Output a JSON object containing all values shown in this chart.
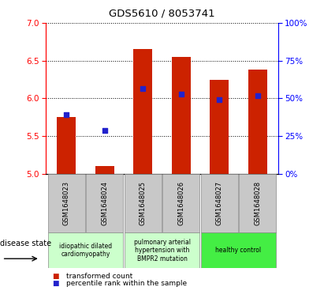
{
  "title": "GDS5610 / 8053741",
  "samples": [
    "GSM1648023",
    "GSM1648024",
    "GSM1648025",
    "GSM1648026",
    "GSM1648027",
    "GSM1648028"
  ],
  "bar_values": [
    5.75,
    5.1,
    6.65,
    6.55,
    6.25,
    6.38
  ],
  "blue_values": [
    5.78,
    5.57,
    6.13,
    6.06,
    5.98,
    6.04
  ],
  "bar_color": "#cc2200",
  "blue_color": "#2222cc",
  "ylim_left": [
    5.0,
    7.0
  ],
  "ylim_right": [
    0,
    100
  ],
  "yticks_left": [
    5.0,
    5.5,
    6.0,
    6.5,
    7.0
  ],
  "yticks_right": [
    0,
    25,
    50,
    75,
    100
  ],
  "groups": [
    {
      "label": "idiopathic dilated\ncardiomyopathy",
      "samples": [
        "GSM1648023",
        "GSM1648024"
      ],
      "color": "#ccffcc"
    },
    {
      "label": "pulmonary arterial\nhypertension with\nBMPR2 mutation",
      "samples": [
        "GSM1648025",
        "GSM1648026"
      ],
      "color": "#ccffcc"
    },
    {
      "label": "healthy control",
      "samples": [
        "GSM1648027",
        "GSM1648028"
      ],
      "color": "#44ee44"
    }
  ],
  "disease_state_label": "disease state",
  "legend_red": "transformed count",
  "legend_blue": "percentile rank within the sample",
  "bar_width": 0.5,
  "sample_box_color": "#c8c8c8",
  "figure_width": 4.11,
  "figure_height": 3.63,
  "dpi": 100
}
